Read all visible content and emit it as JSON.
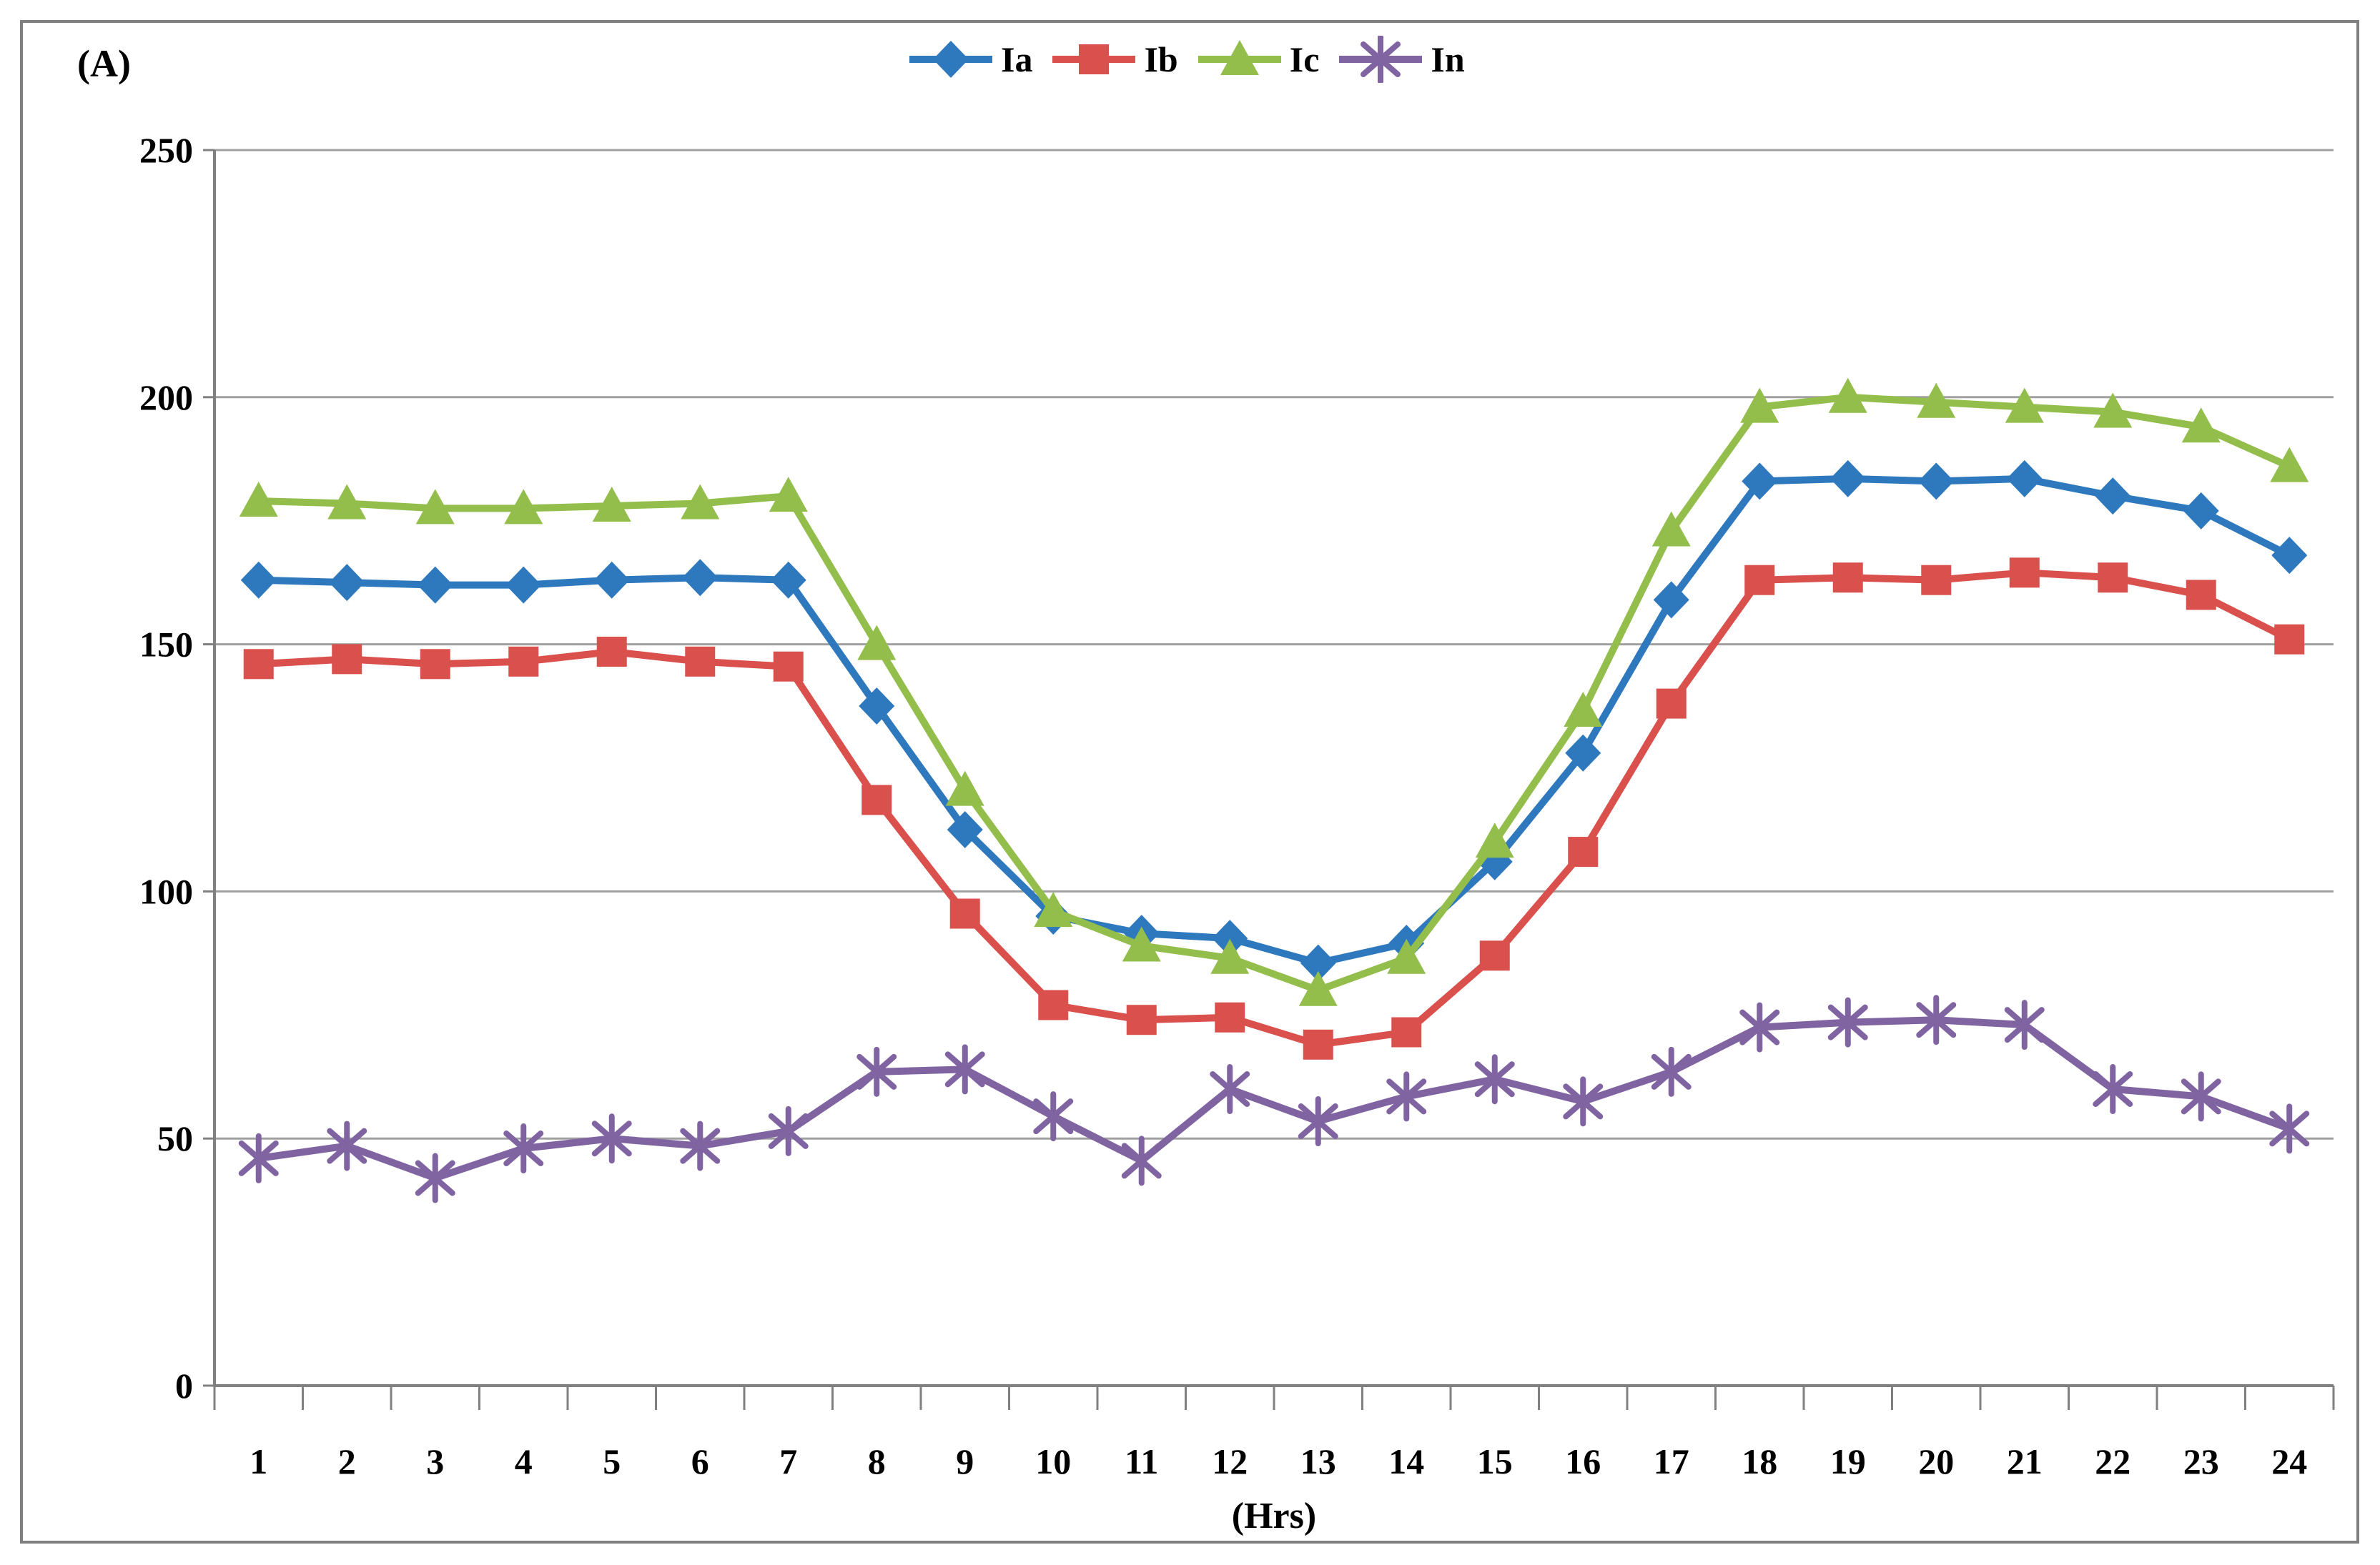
{
  "figure": {
    "y_axis_title": "(A)",
    "x_axis_title": "(Hrs)",
    "border_color": "#7f7f7f",
    "gridline_color": "#a0a0a0",
    "axis_color": "#808080",
    "text_color": "#000000"
  },
  "legend": {
    "items": [
      {
        "label": "Ia",
        "marker": "diamond",
        "color": "#2e79be"
      },
      {
        "label": "Ib",
        "marker": "square",
        "color": "#d9504c"
      },
      {
        "label": "Ic",
        "marker": "triangle",
        "color": "#93be4b"
      },
      {
        "label": "In",
        "marker": "asterisk",
        "color": "#8064a2"
      }
    ]
  },
  "chart_data": {
    "type": "line",
    "title": "",
    "xlabel": "(Hrs)",
    "ylabel": "(A)",
    "categories": [
      1,
      2,
      3,
      4,
      5,
      6,
      7,
      8,
      9,
      10,
      11,
      12,
      13,
      14,
      15,
      16,
      17,
      18,
      19,
      20,
      21,
      22,
      23,
      24
    ],
    "ylim": [
      0,
      250
    ],
    "ytick_interval": 50,
    "yticks": [
      0,
      50,
      100,
      150,
      200,
      250
    ],
    "grid": true,
    "legend_position": "top-center",
    "series": [
      {
        "name": "Ia",
        "marker": "diamond",
        "color": "#2e79be",
        "values": [
          163,
          162.5,
          162,
          162,
          163,
          163.5,
          163,
          137.5,
          112.5,
          95,
          91.5,
          90.5,
          85.5,
          89.5,
          106,
          128,
          159,
          183,
          183.5,
          183,
          183.5,
          180,
          177,
          168
        ]
      },
      {
        "name": "Ib",
        "marker": "square",
        "color": "#d9504c",
        "values": [
          146,
          147,
          146,
          146.5,
          148.5,
          146.5,
          145.5,
          118.5,
          95.5,
          77,
          74,
          74.5,
          69,
          71.5,
          87,
          108,
          138,
          163,
          163.5,
          163,
          164.5,
          163.5,
          160,
          151
        ]
      },
      {
        "name": "Ic",
        "marker": "triangle",
        "color": "#93be4b",
        "values": [
          179,
          178.5,
          177.5,
          177.5,
          178,
          178.5,
          180,
          150,
          120.5,
          96,
          89,
          86.5,
          80,
          86.5,
          110,
          136.5,
          173,
          198,
          200,
          199,
          198,
          197,
          194,
          186
        ]
      },
      {
        "name": "In",
        "marker": "asterisk",
        "color": "#8064a2",
        "values": [
          46,
          48.5,
          42,
          48,
          50,
          48.5,
          51.5,
          63.5,
          64,
          54.5,
          45.5,
          60,
          53.5,
          58.5,
          62,
          57.5,
          63.5,
          72.5,
          73.5,
          74,
          73,
          60,
          58.5,
          52
        ]
      }
    ]
  }
}
